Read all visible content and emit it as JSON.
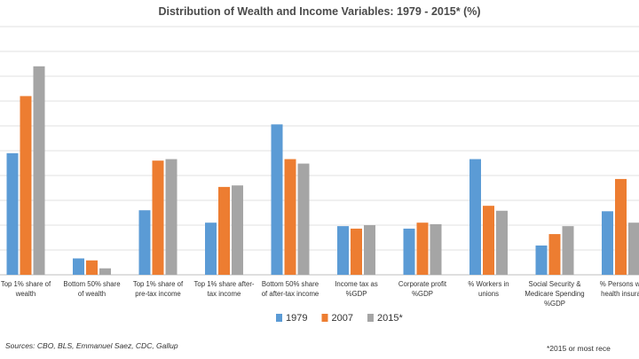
{
  "chart_data": {
    "type": "bar",
    "title": "Distribution of Wealth and Income Variables:  1979 - 2015* (%)",
    "categories": [
      [
        "Top 1% share of",
        "wealth"
      ],
      [
        "Bottom 50% share",
        "of wealth"
      ],
      [
        "Top 1% share of",
        "pre-tax income"
      ],
      [
        "Top 1% share after-",
        "tax income"
      ],
      [
        "Bottom 50% share",
        "of after-tax income"
      ],
      [
        "Income tax as",
        "%GDP"
      ],
      [
        "Corporate profit",
        "%GDP"
      ],
      [
        "% Workers in",
        "unions"
      ],
      [
        "Social Security &",
        "Medicare Spending",
        "%GDP"
      ],
      [
        "% Persons wi",
        "health insura"
      ]
    ],
    "series": [
      {
        "name": "1979",
        "color": "#5b9bd5",
        "values": [
          24.5,
          3.3,
          13.0,
          10.5,
          30.3,
          9.8,
          9.3,
          23.3,
          5.9,
          12.8
        ]
      },
      {
        "name": "2007",
        "color": "#ed7d31",
        "values": [
          36.0,
          2.9,
          23.0,
          17.7,
          23.3,
          9.3,
          10.5,
          13.9,
          8.2,
          19.3
        ]
      },
      {
        "name": "2015*",
        "color": "#a5a5a5",
        "values": [
          42.0,
          1.3,
          23.3,
          18.0,
          22.4,
          10.0,
          10.2,
          12.9,
          9.8,
          10.5
        ]
      }
    ],
    "ylim": [
      0,
      50
    ],
    "grid": true,
    "legend": "bottom-center"
  },
  "sources": "Sources:  CBO,  BLS, Emmanuel Saez, CDC, Gallup",
  "footnote": "*2015 or most rece"
}
